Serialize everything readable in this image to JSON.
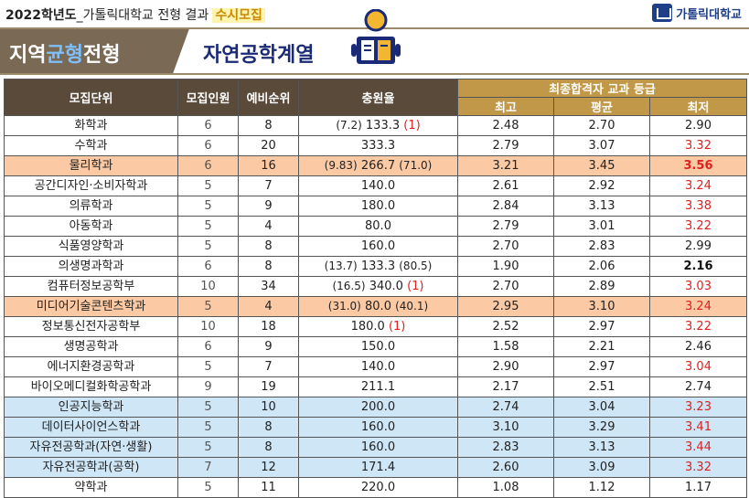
{
  "header": {
    "year": "2022학년도",
    "subtitle": "_가톨릭대학교 전형 결과",
    "badge": "수시모집",
    "logo_text": "가톨릭대학교"
  },
  "banner": {
    "pre": "지역",
    "mid": "균형",
    "post": "전형",
    "category": "자연공학계열",
    "icon": "reading-person-icon"
  },
  "colors": {
    "accent_brown": "#7a6a55",
    "accent_gold": "#c09848",
    "highlight_orange": "#fbc9a3",
    "highlight_blue": "#cfe6f6",
    "red": "#e02020",
    "navy": "#1b2a77"
  },
  "table": {
    "headers": {
      "dept": "모집단위",
      "quota": "모집인원",
      "waitlist": "예비순위",
      "rate": "충원율",
      "grade_group": "최종합격자 교과 등급",
      "max": "최고",
      "avg": "평균",
      "min": "최저"
    },
    "rows": [
      {
        "dept": "화학과",
        "quota": "6",
        "wait": "8",
        "rate_pre": "(7.2)",
        "rate": "133.3",
        "rate_post": "(1)",
        "max": "2.48",
        "avg": "2.70",
        "min": "2.90",
        "style": ""
      },
      {
        "dept": "수학과",
        "quota": "6",
        "wait": "20",
        "rate_pre": "",
        "rate": "333.3",
        "rate_post": "",
        "max": "2.79",
        "avg": "3.07",
        "min": "3.32",
        "style": "",
        "min_red": true
      },
      {
        "dept": "물리학과",
        "quota": "6",
        "wait": "16",
        "rate_pre": "(9.83)",
        "rate": "266.7",
        "rate_post": "(71.0)",
        "max": "3.21",
        "avg": "3.45",
        "min": "3.56",
        "style": "orange",
        "min_red": true,
        "min_bold": true
      },
      {
        "dept": "공간디자인·소비자학과",
        "quota": "5",
        "wait": "7",
        "rate_pre": "",
        "rate": "140.0",
        "rate_post": "",
        "max": "2.61",
        "avg": "2.92",
        "min": "3.24",
        "style": "",
        "min_red": true
      },
      {
        "dept": "의류학과",
        "quota": "5",
        "wait": "9",
        "rate_pre": "",
        "rate": "180.0",
        "rate_post": "",
        "max": "2.84",
        "avg": "3.13",
        "min": "3.38",
        "style": "",
        "min_red": true
      },
      {
        "dept": "아동학과",
        "quota": "5",
        "wait": "4",
        "rate_pre": "",
        "rate": "80.0",
        "rate_post": "",
        "max": "2.79",
        "avg": "3.01",
        "min": "3.22",
        "style": "",
        "min_red": true
      },
      {
        "dept": "식품영양학과",
        "quota": "5",
        "wait": "8",
        "rate_pre": "",
        "rate": "160.0",
        "rate_post": "",
        "max": "2.70",
        "avg": "2.83",
        "min": "2.99",
        "style": ""
      },
      {
        "dept": "의생명과학과",
        "quota": "6",
        "wait": "8",
        "rate_pre": "(13.7)",
        "rate": "133.3",
        "rate_post": "(80.5)",
        "max": "1.90",
        "avg": "2.06",
        "min": "2.16",
        "style": "",
        "min_bold": true
      },
      {
        "dept": "컴퓨터정보공학부",
        "quota": "10",
        "wait": "34",
        "rate_pre": "(16.5)",
        "rate": "340.0",
        "rate_post": "(1)",
        "max": "2.70",
        "avg": "2.89",
        "min": "3.03",
        "style": "",
        "min_red": true
      },
      {
        "dept": "미디어기술콘텐츠학과",
        "quota": "5",
        "wait": "4",
        "rate_pre": "(31.0)",
        "rate": "80.0",
        "rate_post": "(40.1)",
        "max": "2.95",
        "avg": "3.10",
        "min": "3.24",
        "style": "orange",
        "min_red": true
      },
      {
        "dept": "정보통신전자공학부",
        "quota": "10",
        "wait": "18",
        "rate_pre": "",
        "rate": "180.0",
        "rate_post": "(1)",
        "max": "2.52",
        "avg": "2.97",
        "min": "3.22",
        "style": "",
        "min_red": true
      },
      {
        "dept": "생명공학과",
        "quota": "6",
        "wait": "9",
        "rate_pre": "",
        "rate": "150.0",
        "rate_post": "",
        "max": "1.58",
        "avg": "2.21",
        "min": "2.46",
        "style": ""
      },
      {
        "dept": "에너지환경공학과",
        "quota": "5",
        "wait": "7",
        "rate_pre": "",
        "rate": "140.0",
        "rate_post": "",
        "max": "2.90",
        "avg": "2.97",
        "min": "3.04",
        "style": "",
        "min_red": true
      },
      {
        "dept": "바이오메디컬화학공학과",
        "quota": "9",
        "wait": "19",
        "rate_pre": "",
        "rate": "211.1",
        "rate_post": "",
        "max": "2.17",
        "avg": "2.51",
        "min": "2.74",
        "style": ""
      },
      {
        "dept": "인공지능학과",
        "quota": "5",
        "wait": "10",
        "rate_pre": "",
        "rate": "200.0",
        "rate_post": "",
        "max": "2.74",
        "avg": "3.04",
        "min": "3.23",
        "style": "blue",
        "min_red": true
      },
      {
        "dept": "데이터사이언스학과",
        "quota": "5",
        "wait": "8",
        "rate_pre": "",
        "rate": "160.0",
        "rate_post": "",
        "max": "3.10",
        "avg": "3.29",
        "min": "3.41",
        "style": "blue",
        "min_red": true
      },
      {
        "dept": "자유전공학과(자연·생활)",
        "quota": "5",
        "wait": "8",
        "rate_pre": "",
        "rate": "160.0",
        "rate_post": "",
        "max": "2.83",
        "avg": "3.13",
        "min": "3.44",
        "style": "blue",
        "min_red": true
      },
      {
        "dept": "자유전공학과(공학)",
        "quota": "7",
        "wait": "12",
        "rate_pre": "",
        "rate": "171.4",
        "rate_post": "",
        "max": "2.60",
        "avg": "3.09",
        "min": "3.32",
        "style": "blue",
        "min_red": true
      },
      {
        "dept": "약학과",
        "quota": "5",
        "wait": "11",
        "rate_pre": "",
        "rate": "220.0",
        "rate_post": "",
        "max": "1.08",
        "avg": "1.12",
        "min": "1.17",
        "style": ""
      }
    ]
  }
}
